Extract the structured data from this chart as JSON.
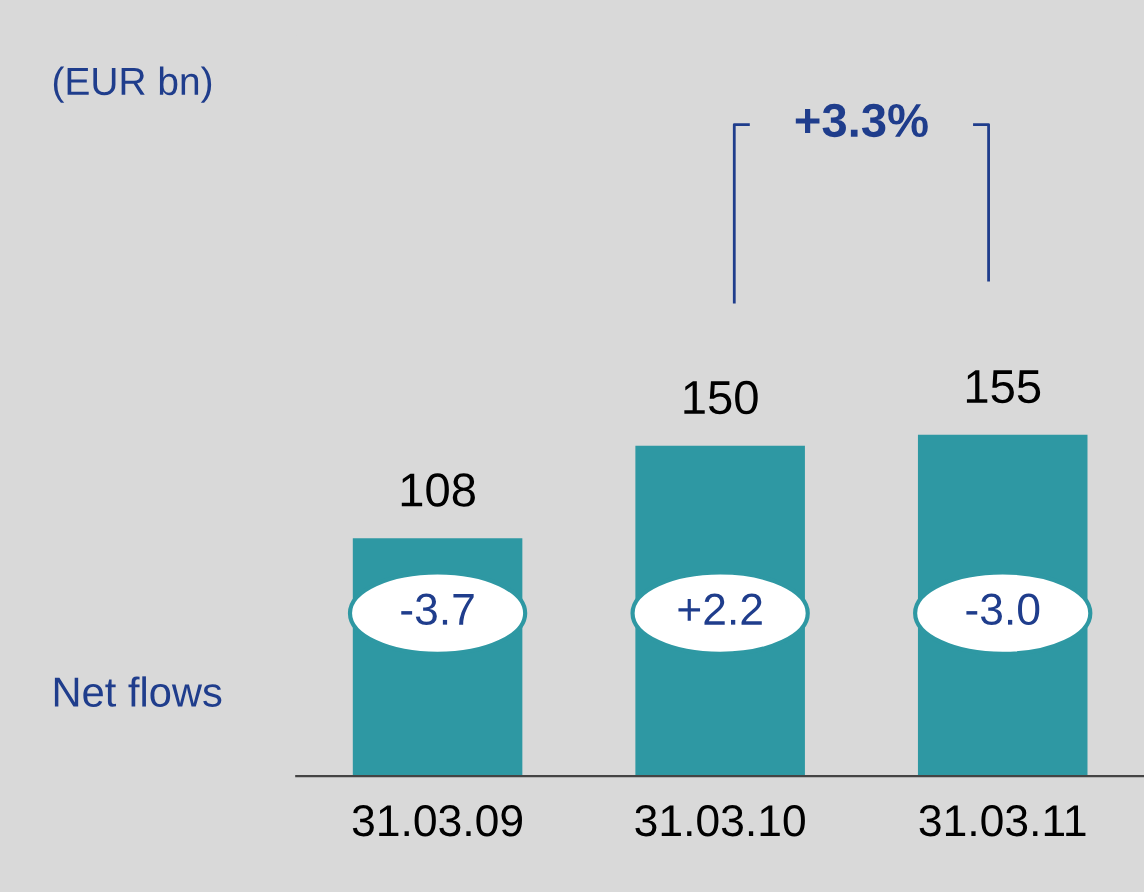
{
  "chart_data": {
    "type": "bar",
    "categories": [
      "31.03.09",
      "31.03.10",
      "31.03.11"
    ],
    "values": [
      108,
      150,
      155
    ],
    "color": "#2e98a3",
    "data_labels": true,
    "grid": false,
    "annotations": [
      "(EUR bn)",
      "Net flows",
      "-3.7",
      "+2.2",
      "-3.0",
      "+3.3%"
    ]
  }
}
